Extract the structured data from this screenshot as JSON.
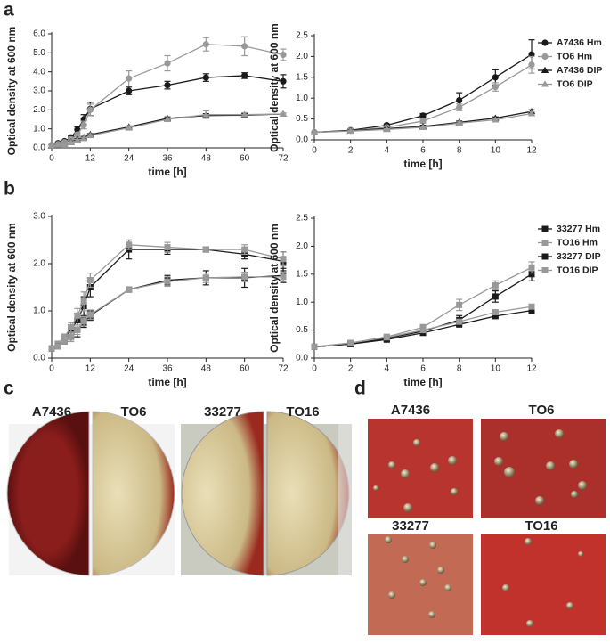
{
  "panel_labels": [
    "a",
    "b",
    "c",
    "d"
  ],
  "plates_c": [
    "A7436",
    "TO6",
    "33277",
    "TO16"
  ],
  "colonies_d": [
    "A7436",
    "TO6",
    "33277",
    "TO16"
  ],
  "chart_data": [
    {
      "type": "line",
      "xlabel": "time [h]",
      "ylabel": "Optical density at 600 nm",
      "x": [
        0,
        2,
        4,
        6,
        8,
        10,
        12,
        24,
        36,
        48,
        60,
        72
      ],
      "xlim": [
        0,
        72
      ],
      "xticks": [
        0,
        12,
        24,
        36,
        48,
        60,
        72
      ],
      "ylim": [
        0,
        6
      ],
      "yticks": [
        {
          "value": 0,
          "label": "0.0"
        },
        {
          "value": 1,
          "label": "1.0"
        },
        {
          "value": 2,
          "label": "2.0"
        },
        {
          "value": 3,
          "label": "3.0"
        },
        {
          "value": 4,
          "label": "4.0"
        },
        {
          "value": 5,
          "label": "5.0"
        },
        {
          "value": 6,
          "label": "6.0"
        }
      ],
      "series": [
        {
          "color": "#1a1a1a",
          "marker": "circle",
          "values": [
            0.15,
            0.25,
            0.35,
            0.55,
            0.95,
            1.5,
            2.05,
            3.0,
            3.3,
            3.7,
            3.8,
            3.5
          ],
          "errors": [
            0.03,
            0.05,
            0.05,
            0.1,
            0.15,
            0.25,
            0.35,
            0.2,
            0.2,
            0.2,
            0.15,
            0.35
          ]
        },
        {
          "color": "#999999",
          "marker": "circle",
          "values": [
            0.15,
            0.2,
            0.3,
            0.45,
            0.7,
            1.2,
            2.0,
            3.65,
            4.45,
            5.45,
            5.35,
            4.9
          ],
          "errors": [
            0.03,
            0.05,
            0.05,
            0.1,
            0.1,
            0.2,
            0.3,
            0.4,
            0.4,
            0.35,
            0.5,
            0.3
          ]
        },
        {
          "color": "#1a1a1a",
          "marker": "triangle",
          "values": [
            0.1,
            0.15,
            0.2,
            0.3,
            0.45,
            0.55,
            0.7,
            1.1,
            1.55,
            1.7,
            1.72,
            1.78
          ],
          "errors": [
            0.02,
            0.03,
            0.03,
            0.05,
            0.05,
            0.05,
            0.05,
            0.05,
            0.08,
            0.1,
            0.08,
            0.05
          ]
        },
        {
          "color": "#999999",
          "marker": "triangle",
          "values": [
            0.1,
            0.15,
            0.2,
            0.28,
            0.4,
            0.5,
            0.65,
            1.05,
            1.5,
            1.75,
            1.75,
            1.78
          ],
          "errors": [
            0.02,
            0.03,
            0.03,
            0.05,
            0.05,
            0.05,
            0.05,
            0.05,
            0.08,
            0.2,
            0.1,
            0.05
          ]
        }
      ]
    },
    {
      "type": "line",
      "xlabel": "time [h]",
      "ylabel": "Optical density at 600 nm",
      "legend": "right",
      "x": [
        0,
        2,
        4,
        6,
        8,
        10,
        12
      ],
      "xlim": [
        0,
        12
      ],
      "xticks": [
        0,
        2,
        4,
        6,
        8,
        10,
        12
      ],
      "ylim": [
        0,
        2.5
      ],
      "yticks": [
        {
          "value": 0,
          "label": "0.0"
        },
        0.5,
        {
          "value": 1,
          "label": "1.0"
        },
        1.5,
        {
          "value": 2,
          "label": "2.0"
        },
        2.5
      ],
      "series": [
        {
          "name": "A7436 Hm",
          "color": "#1a1a1a",
          "marker": "circle",
          "values": [
            0.18,
            0.23,
            0.35,
            0.58,
            0.95,
            1.5,
            2.05
          ],
          "errors": [
            0.02,
            0.02,
            0.03,
            0.05,
            0.18,
            0.18,
            0.35
          ]
        },
        {
          "name": "TO6 Hm",
          "color": "#999999",
          "marker": "circle",
          "values": [
            0.18,
            0.22,
            0.3,
            0.45,
            0.78,
            1.27,
            1.8
          ],
          "errors": [
            0.02,
            0.02,
            0.03,
            0.05,
            0.08,
            0.1,
            0.2
          ]
        },
        {
          "name": "A7436 DIP",
          "color": "#1a1a1a",
          "marker": "triangle",
          "values": [
            0.18,
            0.22,
            0.27,
            0.32,
            0.42,
            0.52,
            0.68
          ],
          "errors": [
            0.02,
            0.02,
            0.02,
            0.03,
            0.03,
            0.03,
            0.04
          ]
        },
        {
          "name": "TO6 DIP",
          "color": "#999999",
          "marker": "triangle",
          "values": [
            0.18,
            0.21,
            0.25,
            0.3,
            0.4,
            0.48,
            0.63
          ],
          "errors": [
            0.02,
            0.02,
            0.02,
            0.03,
            0.03,
            0.03,
            0.04
          ]
        }
      ]
    },
    {
      "type": "line",
      "xlabel": "time [h]",
      "ylabel": "Optical density at 600 nm",
      "x": [
        0,
        2,
        4,
        6,
        8,
        10,
        12,
        24,
        36,
        48,
        60,
        72
      ],
      "xlim": [
        0,
        72
      ],
      "xticks": [
        0,
        12,
        24,
        36,
        48,
        60,
        72
      ],
      "ylim": [
        0,
        3
      ],
      "yticks": [
        {
          "value": 0,
          "label": "0.0"
        },
        {
          "value": 1,
          "label": "1.0"
        },
        {
          "value": 2,
          "label": "2.0"
        },
        {
          "value": 3,
          "label": "3.0"
        }
      ],
      "series": [
        {
          "color": "#1a1a1a",
          "marker": "square",
          "values": [
            0.2,
            0.3,
            0.45,
            0.6,
            0.8,
            1.1,
            1.5,
            2.3,
            2.3,
            2.3,
            2.2,
            2.05
          ],
          "errors": [
            0.03,
            0.05,
            0.05,
            0.1,
            0.15,
            0.2,
            0.2,
            0.2,
            0.1,
            0.05,
            0.1,
            0.2
          ]
        },
        {
          "color": "#999999",
          "marker": "square",
          "values": [
            0.2,
            0.3,
            0.45,
            0.65,
            0.9,
            1.2,
            1.65,
            2.4,
            2.35,
            2.3,
            2.3,
            2.1
          ],
          "errors": [
            0.03,
            0.05,
            0.05,
            0.1,
            0.15,
            0.2,
            0.15,
            0.1,
            0.1,
            0.05,
            0.1,
            0.15
          ]
        },
        {
          "color": "#1a1a1a",
          "marker": "square",
          "values": [
            0.2,
            0.25,
            0.35,
            0.45,
            0.6,
            0.75,
            0.9,
            1.45,
            1.65,
            1.7,
            1.7,
            1.75
          ],
          "errors": [
            0.03,
            0.05,
            0.05,
            0.1,
            0.15,
            0.1,
            0.1,
            0.05,
            0.1,
            0.15,
            0.2,
            0.15
          ]
        },
        {
          "color": "#999999",
          "marker": "square",
          "values": [
            0.2,
            0.25,
            0.35,
            0.45,
            0.6,
            0.78,
            0.92,
            1.45,
            1.62,
            1.7,
            1.72,
            1.72
          ],
          "errors": [
            0.03,
            0.05,
            0.05,
            0.1,
            0.1,
            0.1,
            0.1,
            0.05,
            0.1,
            0.1,
            0.1,
            0.1
          ]
        }
      ]
    },
    {
      "type": "line",
      "xlabel": "time [h]",
      "ylabel": "Optical density at 600 nm",
      "legend": "right",
      "x": [
        0,
        2,
        4,
        6,
        8,
        10,
        12
      ],
      "xlim": [
        0,
        12
      ],
      "xticks": [
        0,
        2,
        4,
        6,
        8,
        10,
        12
      ],
      "ylim": [
        0,
        2.5
      ],
      "yticks": [
        {
          "value": 0,
          "label": "0.0"
        },
        0.5,
        {
          "value": 1,
          "label": "1.0"
        },
        1.5,
        {
          "value": 2,
          "label": "2.0"
        },
        2.5
      ],
      "series": [
        {
          "name": "33277 Hm",
          "color": "#1a1a1a",
          "marker": "square",
          "values": [
            0.2,
            0.25,
            0.35,
            0.48,
            0.68,
            1.1,
            1.5
          ],
          "errors": [
            0.02,
            0.02,
            0.03,
            0.05,
            0.08,
            0.1,
            0.12
          ]
        },
        {
          "name": "TO16 Hm",
          "color": "#999999",
          "marker": "square",
          "values": [
            0.2,
            0.27,
            0.38,
            0.55,
            0.95,
            1.3,
            1.62
          ],
          "errors": [
            0.02,
            0.02,
            0.03,
            0.05,
            0.1,
            0.08,
            0.1
          ]
        },
        {
          "name": "33277 DIP",
          "color": "#1a1a1a",
          "marker": "square",
          "values": [
            0.2,
            0.25,
            0.33,
            0.45,
            0.6,
            0.75,
            0.85
          ],
          "errors": [
            0.02,
            0.02,
            0.03,
            0.03,
            0.03,
            0.03,
            0.04
          ]
        },
        {
          "name": "TO16 DIP",
          "color": "#999999",
          "marker": "square",
          "values": [
            0.2,
            0.27,
            0.37,
            0.5,
            0.65,
            0.82,
            0.92
          ],
          "errors": [
            0.02,
            0.02,
            0.03,
            0.03,
            0.03,
            0.03,
            0.04
          ]
        }
      ]
    }
  ]
}
